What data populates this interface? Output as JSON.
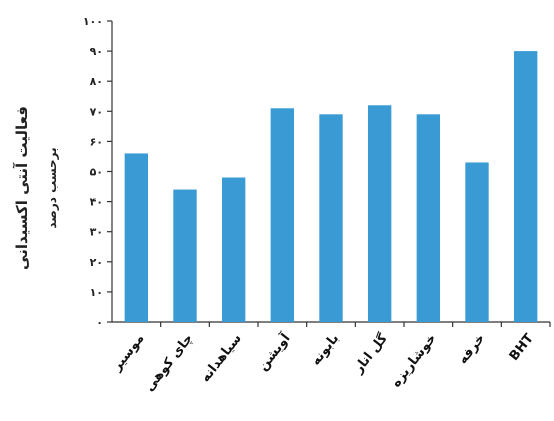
{
  "chart_data": {
    "type": "bar",
    "categories": [
      "موسیر",
      "چای کوهی",
      "سیاهدانه",
      "آویشن",
      "بابونه",
      "گل انار",
      "خوشاریزه",
      "خرفه",
      "BHT"
    ],
    "values": [
      56,
      44,
      48,
      71,
      69,
      72,
      69,
      53,
      90
    ],
    "ylabel": "فعالیت آنتی اکسیدانی",
    "ylabel_sub": "برحسب درصد",
    "ylim": [
      0,
      100
    ],
    "y_ticks": [
      0,
      10,
      20,
      30,
      40,
      50,
      60,
      70,
      80,
      90,
      100
    ],
    "y_tick_labels": [
      "۰",
      "۱۰",
      "۲۰",
      "۳۰",
      "۴۰",
      "۵۰",
      "۶۰",
      "۷۰",
      "۸۰",
      "۹۰",
      "۱۰۰"
    ],
    "bar_color": "#3a9ad4",
    "grid": false,
    "legend": "none"
  }
}
